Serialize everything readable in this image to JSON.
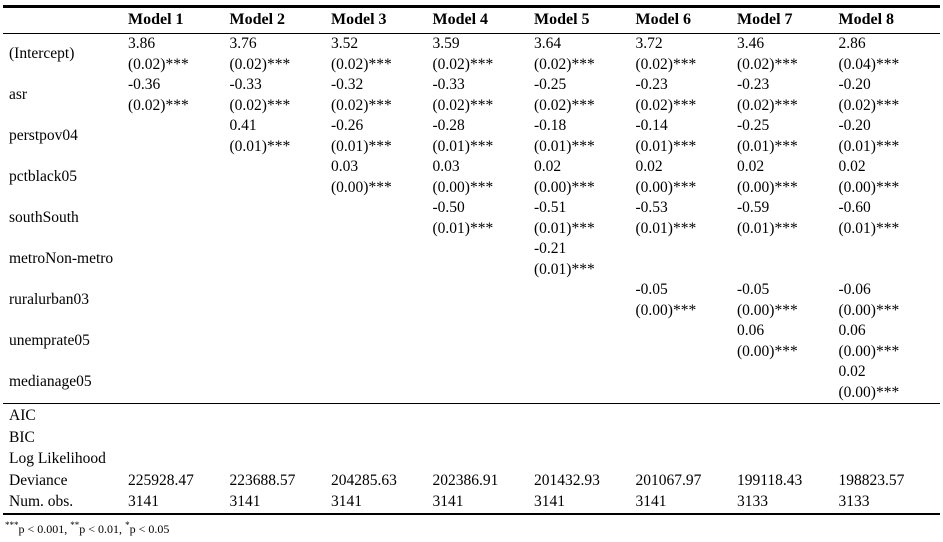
{
  "table": {
    "col_headers": [
      "",
      "Model 1",
      "Model 2",
      "Model 3",
      "Model 4",
      "Model 5",
      "Model 6",
      "Model 7",
      "Model 8"
    ],
    "coef_rows": [
      {
        "label": "(Intercept)",
        "cells": [
          {
            "est": "3.86",
            "se": "(0.02)***"
          },
          {
            "est": "3.76",
            "se": "(0.02)***"
          },
          {
            "est": "3.52",
            "se": "(0.02)***"
          },
          {
            "est": "3.59",
            "se": "(0.02)***"
          },
          {
            "est": "3.64",
            "se": "(0.02)***"
          },
          {
            "est": "3.72",
            "se": "(0.02)***"
          },
          {
            "est": "3.46",
            "se": "(0.02)***"
          },
          {
            "est": "2.86",
            "se": "(0.04)***"
          }
        ]
      },
      {
        "label": "asr",
        "cells": [
          {
            "est": "-0.36",
            "se": "(0.02)***"
          },
          {
            "est": "-0.33",
            "se": "(0.02)***"
          },
          {
            "est": "-0.32",
            "se": "(0.02)***"
          },
          {
            "est": "-0.33",
            "se": "(0.02)***"
          },
          {
            "est": "-0.25",
            "se": "(0.02)***"
          },
          {
            "est": "-0.23",
            "se": "(0.02)***"
          },
          {
            "est": "-0.23",
            "se": "(0.02)***"
          },
          {
            "est": "-0.20",
            "se": "(0.02)***"
          }
        ]
      },
      {
        "label": "perstpov04",
        "cells": [
          null,
          {
            "est": "0.41",
            "se": "(0.01)***"
          },
          {
            "est": "-0.26",
            "se": "(0.01)***"
          },
          {
            "est": "-0.28",
            "se": "(0.01)***"
          },
          {
            "est": "-0.18",
            "se": "(0.01)***"
          },
          {
            "est": "-0.14",
            "se": "(0.01)***"
          },
          {
            "est": "-0.25",
            "se": "(0.01)***"
          },
          {
            "est": "-0.20",
            "se": "(0.01)***"
          }
        ]
      },
      {
        "label": "pctblack05",
        "cells": [
          null,
          null,
          {
            "est": "0.03",
            "se": "(0.00)***"
          },
          {
            "est": "0.03",
            "se": "(0.00)***"
          },
          {
            "est": "0.02",
            "se": "(0.00)***"
          },
          {
            "est": "0.02",
            "se": "(0.00)***"
          },
          {
            "est": "0.02",
            "se": "(0.00)***"
          },
          {
            "est": "0.02",
            "se": "(0.00)***"
          }
        ]
      },
      {
        "label": "southSouth",
        "cells": [
          null,
          null,
          null,
          {
            "est": "-0.50",
            "se": "(0.01)***"
          },
          {
            "est": "-0.51",
            "se": "(0.01)***"
          },
          {
            "est": "-0.53",
            "se": "(0.01)***"
          },
          {
            "est": "-0.59",
            "se": "(0.01)***"
          },
          {
            "est": "-0.60",
            "se": "(0.01)***"
          }
        ]
      },
      {
        "label": "metroNon-metro",
        "cells": [
          null,
          null,
          null,
          null,
          {
            "est": "-0.21",
            "se": "(0.01)***"
          },
          null,
          null,
          null
        ]
      },
      {
        "label": "ruralurban03",
        "cells": [
          null,
          null,
          null,
          null,
          null,
          {
            "est": "-0.05",
            "se": "(0.00)***"
          },
          {
            "est": "-0.05",
            "se": "(0.00)***"
          },
          {
            "est": "-0.06",
            "se": "(0.00)***"
          }
        ]
      },
      {
        "label": "unemprate05",
        "cells": [
          null,
          null,
          null,
          null,
          null,
          null,
          {
            "est": "0.06",
            "se": "(0.00)***"
          },
          {
            "est": "0.06",
            "se": "(0.00)***"
          }
        ]
      },
      {
        "label": "medianage05",
        "cells": [
          null,
          null,
          null,
          null,
          null,
          null,
          null,
          {
            "est": "0.02",
            "se": "(0.00)***"
          }
        ]
      }
    ],
    "gof_rows": [
      {
        "label": "AIC",
        "values": [
          "",
          "",
          "",
          "",
          "",
          "",
          "",
          ""
        ]
      },
      {
        "label": "BIC",
        "values": [
          "",
          "",
          "",
          "",
          "",
          "",
          "",
          ""
        ]
      },
      {
        "label": "Log Likelihood",
        "values": [
          "",
          "",
          "",
          "",
          "",
          "",
          "",
          ""
        ]
      },
      {
        "label": "Deviance",
        "values": [
          "225928.47",
          "223688.57",
          "204285.63",
          "202386.91",
          "201432.93",
          "201067.97",
          "199118.43",
          "198823.57"
        ]
      },
      {
        "label": "Num. obs.",
        "values": [
          "3141",
          "3141",
          "3141",
          "3141",
          "3141",
          "3141",
          "3133",
          "3133"
        ]
      }
    ],
    "footnote": [
      {
        "sup": "***",
        "text": "p < 0.001, "
      },
      {
        "sup": "**",
        "text": "p < 0.01, "
      },
      {
        "sup": "*",
        "text": "p < 0.05"
      }
    ]
  }
}
